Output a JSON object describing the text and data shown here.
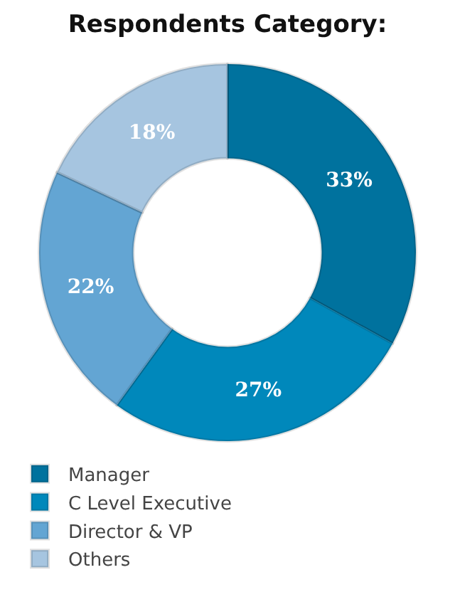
{
  "chart_data": {
    "type": "donut",
    "title": "Respondents Category:",
    "categories": [
      "Manager",
      "C Level Executive",
      "Director & VP",
      "Others"
    ],
    "values": [
      33,
      27,
      22,
      18
    ],
    "colors": [
      "#00729e",
      "#0088bb",
      "#63a5d3",
      "#a6c5e0"
    ],
    "value_labels": [
      "33%",
      "27%",
      "22%",
      "18%"
    ],
    "legend": "bottom"
  }
}
